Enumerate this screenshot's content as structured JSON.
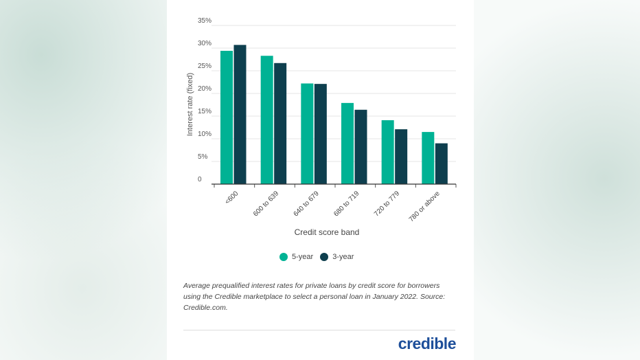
{
  "chart_data": {
    "type": "bar",
    "title": "",
    "xlabel": "Credit score band",
    "ylabel": "Interest rate (fixed)",
    "ylim": [
      0,
      35
    ],
    "yticks": [
      "0",
      "5%",
      "10%",
      "15%",
      "20%",
      "25%",
      "30%",
      "35%"
    ],
    "grid": true,
    "legend_position": "bottom",
    "categories": [
      "<600",
      "600 to 639",
      "640 to 679",
      "680 to 719",
      "720 to 779",
      "780 or above"
    ],
    "series": [
      {
        "name": "5-year",
        "color": "#00b294",
        "values": [
          29.4,
          28.3,
          22.2,
          17.9,
          14.1,
          11.5
        ]
      },
      {
        "name": "3-year",
        "color": "#0e3f4e",
        "values": [
          30.7,
          26.7,
          22.1,
          16.4,
          12.1,
          9.0
        ]
      }
    ]
  },
  "caption": "Average prequalified interest rates for private loans by credit score for borrowers using the Credible marketplace to select a personal loan in January 2022. Source: Credible.com.",
  "logo": "credible"
}
